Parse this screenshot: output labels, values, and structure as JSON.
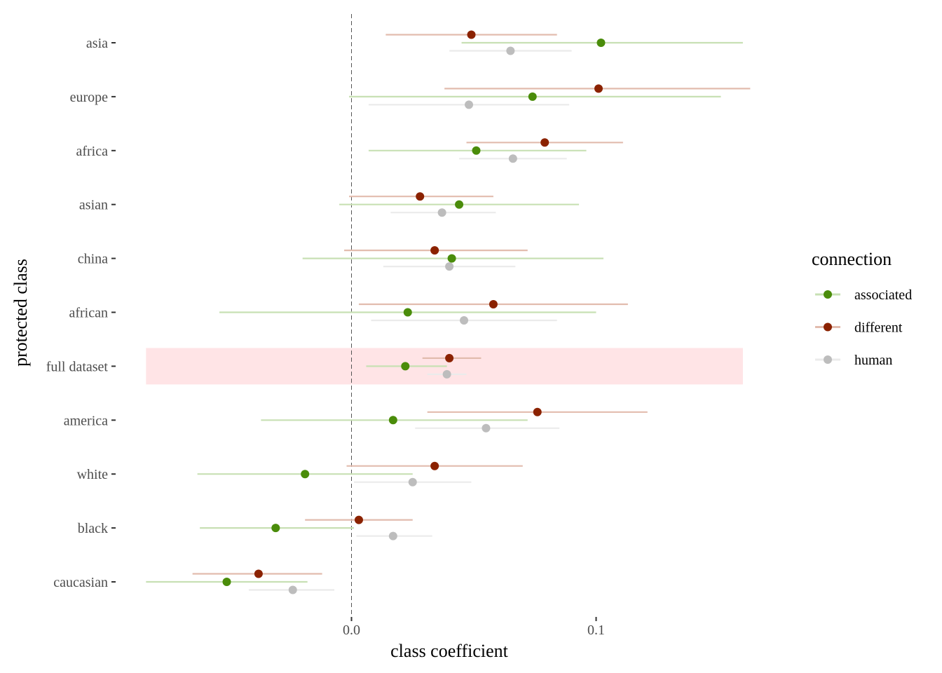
{
  "chart_data": {
    "type": "scatter",
    "subtype": "dot-and-whisker",
    "xlabel": "class coefficient",
    "ylabel": "protected class",
    "xlim": [
      -0.084,
      0.163
    ],
    "x_ticks": [
      {
        "value": 0.0,
        "label": "0.0"
      },
      {
        "value": 0.1,
        "label": "0.1"
      }
    ],
    "reference_line": 0,
    "grid": false,
    "categories": [
      "asia",
      "europe",
      "africa",
      "asian",
      "china",
      "african",
      "full dataset",
      "america",
      "white",
      "black",
      "caucasian"
    ],
    "highlight": {
      "category": "full dataset",
      "color": "#ffe4e6",
      "x_range": [
        -0.084,
        0.16
      ]
    },
    "legend": {
      "title": "connection",
      "position": "right",
      "entries": [
        "associated",
        "different",
        "human"
      ]
    },
    "series": [
      {
        "name": "associated",
        "color": "#4a8c0a",
        "errorbar_color": "#c8e0b4",
        "points": [
          {
            "category": "asia",
            "estimate": 0.102,
            "low": 0.045,
            "high": 0.16
          },
          {
            "category": "europe",
            "estimate": 0.074,
            "low": -0.001,
            "high": 0.151
          },
          {
            "category": "africa",
            "estimate": 0.051,
            "low": 0.007,
            "high": 0.096
          },
          {
            "category": "asian",
            "estimate": 0.044,
            "low": -0.005,
            "high": 0.093
          },
          {
            "category": "china",
            "estimate": 0.041,
            "low": -0.02,
            "high": 0.103
          },
          {
            "category": "african",
            "estimate": 0.023,
            "low": -0.054,
            "high": 0.1
          },
          {
            "category": "full dataset",
            "estimate": 0.022,
            "low": 0.006,
            "high": 0.039
          },
          {
            "category": "america",
            "estimate": 0.017,
            "low": -0.037,
            "high": 0.072
          },
          {
            "category": "white",
            "estimate": -0.019,
            "low": -0.063,
            "high": 0.025
          },
          {
            "category": "black",
            "estimate": -0.031,
            "low": -0.062,
            "high": 0.001
          },
          {
            "category": "caucasian",
            "estimate": -0.051,
            "low": -0.084,
            "high": -0.018
          }
        ]
      },
      {
        "name": "different",
        "color": "#8b2200",
        "errorbar_color": "#e2bcae",
        "points": [
          {
            "category": "asia",
            "estimate": 0.049,
            "low": 0.014,
            "high": 0.084
          },
          {
            "category": "europe",
            "estimate": 0.101,
            "low": 0.038,
            "high": 0.163
          },
          {
            "category": "africa",
            "estimate": 0.079,
            "low": 0.047,
            "high": 0.111
          },
          {
            "category": "asian",
            "estimate": 0.028,
            "low": -0.001,
            "high": 0.058
          },
          {
            "category": "china",
            "estimate": 0.034,
            "low": -0.003,
            "high": 0.072
          },
          {
            "category": "african",
            "estimate": 0.058,
            "low": 0.003,
            "high": 0.113
          },
          {
            "category": "full dataset",
            "estimate": 0.04,
            "low": 0.029,
            "high": 0.053
          },
          {
            "category": "america",
            "estimate": 0.076,
            "low": 0.031,
            "high": 0.121
          },
          {
            "category": "white",
            "estimate": 0.034,
            "low": -0.002,
            "high": 0.07
          },
          {
            "category": "black",
            "estimate": 0.003,
            "low": -0.019,
            "high": 0.025
          },
          {
            "category": "caucasian",
            "estimate": -0.038,
            "low": -0.065,
            "high": -0.012
          }
        ]
      },
      {
        "name": "human",
        "color": "#bdbdbd",
        "errorbar_color": "#ebebeb",
        "points": [
          {
            "category": "asia",
            "estimate": 0.065,
            "low": 0.04,
            "high": 0.09
          },
          {
            "category": "europe",
            "estimate": 0.048,
            "low": 0.007,
            "high": 0.089
          },
          {
            "category": "africa",
            "estimate": 0.066,
            "low": 0.044,
            "high": 0.088
          },
          {
            "category": "asian",
            "estimate": 0.037,
            "low": 0.016,
            "high": 0.059
          },
          {
            "category": "china",
            "estimate": 0.04,
            "low": 0.013,
            "high": 0.067
          },
          {
            "category": "african",
            "estimate": 0.046,
            "low": 0.008,
            "high": 0.084
          },
          {
            "category": "full dataset",
            "estimate": 0.039,
            "low": 0.031,
            "high": 0.047
          },
          {
            "category": "america",
            "estimate": 0.055,
            "low": 0.026,
            "high": 0.085
          },
          {
            "category": "white",
            "estimate": 0.025,
            "low": 0.001,
            "high": 0.049
          },
          {
            "category": "black",
            "estimate": 0.017,
            "low": 0.002,
            "high": 0.033
          },
          {
            "category": "caucasian",
            "estimate": -0.024,
            "low": -0.042,
            "high": -0.007
          }
        ]
      }
    ]
  }
}
